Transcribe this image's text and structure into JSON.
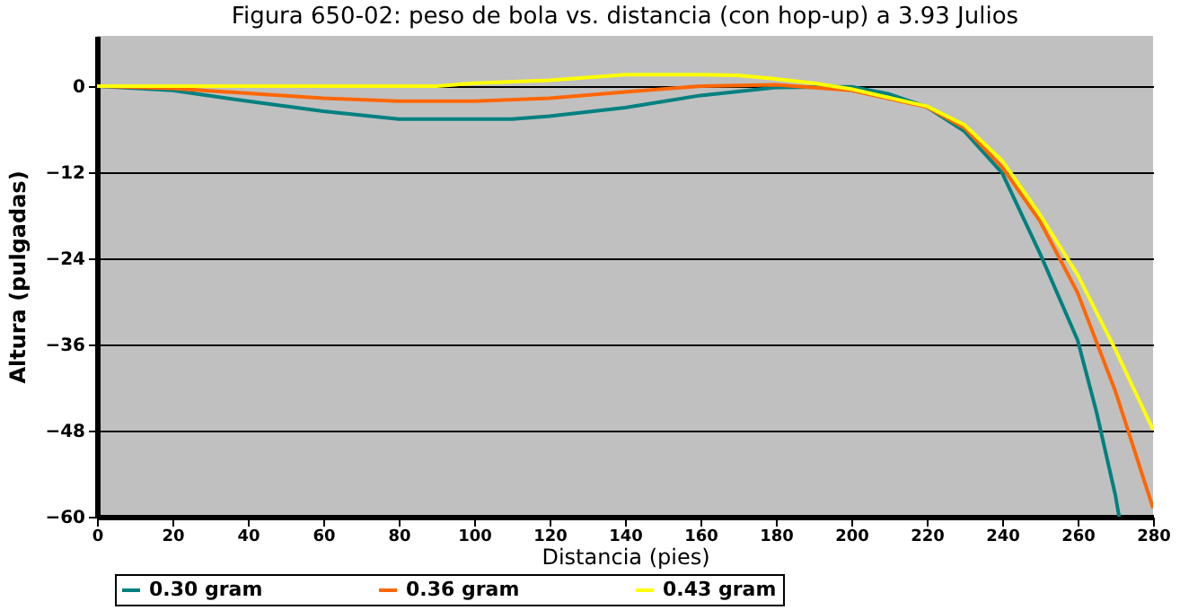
{
  "chart_data": {
    "type": "line",
    "title": "Figura 650-02: peso de bola vs. distancia (con hop-up) a 3.93 Julios",
    "xlabel": "Distancia (pies)",
    "ylabel": "Altura (pulgadas)",
    "xlim": [
      0,
      280
    ],
    "xticks": [
      0,
      20,
      40,
      60,
      80,
      100,
      120,
      140,
      160,
      180,
      200,
      220,
      240,
      260,
      280
    ],
    "ylim": [
      -60,
      7
    ],
    "yticks": [
      0,
      -12,
      -24,
      -36,
      -48,
      -60
    ],
    "grid": "y",
    "legend": "bottom",
    "series": [
      {
        "name": "0.30 gram",
        "color": "#008080",
        "x": [
          0,
          20,
          40,
          60,
          80,
          100,
          110,
          120,
          140,
          160,
          180,
          200,
          210,
          220,
          230,
          240,
          250,
          260,
          265,
          270,
          271
        ],
        "values": [
          0,
          -0.6,
          -2.1,
          -3.5,
          -4.6,
          -4.6,
          -4.6,
          -4.2,
          -3.0,
          -1.3,
          -0.2,
          -0.1,
          -1.1,
          -2.9,
          -6.3,
          -12.1,
          -23.3,
          -35.4,
          -45.4,
          -57,
          -60
        ]
      },
      {
        "name": "0.36 gram",
        "color": "#ff6600",
        "x": [
          0,
          20,
          40,
          60,
          80,
          100,
          120,
          140,
          160,
          180,
          200,
          220,
          230,
          240,
          250,
          260,
          270,
          280
        ],
        "values": [
          0,
          -0.3,
          -1,
          -1.7,
          -2.1,
          -2.1,
          -1.7,
          -0.8,
          0,
          0.2,
          -0.6,
          -2.9,
          -5.8,
          -11.3,
          -18.8,
          -28.8,
          -42.5,
          -58.8
        ]
      },
      {
        "name": "0.43 gram",
        "color": "#ffff00",
        "x": [
          0,
          20,
          40,
          60,
          80,
          90,
          100,
          120,
          140,
          160,
          170,
          180,
          190,
          200,
          220,
          230,
          240,
          250,
          260,
          270,
          280
        ],
        "values": [
          0,
          0,
          0,
          0,
          0,
          0,
          0.4,
          0.8,
          1.6,
          1.6,
          1.5,
          1,
          0.4,
          -0.4,
          -2.8,
          -5.4,
          -10.4,
          -17.9,
          -26.3,
          -36.7,
          -47.9
        ]
      }
    ]
  }
}
